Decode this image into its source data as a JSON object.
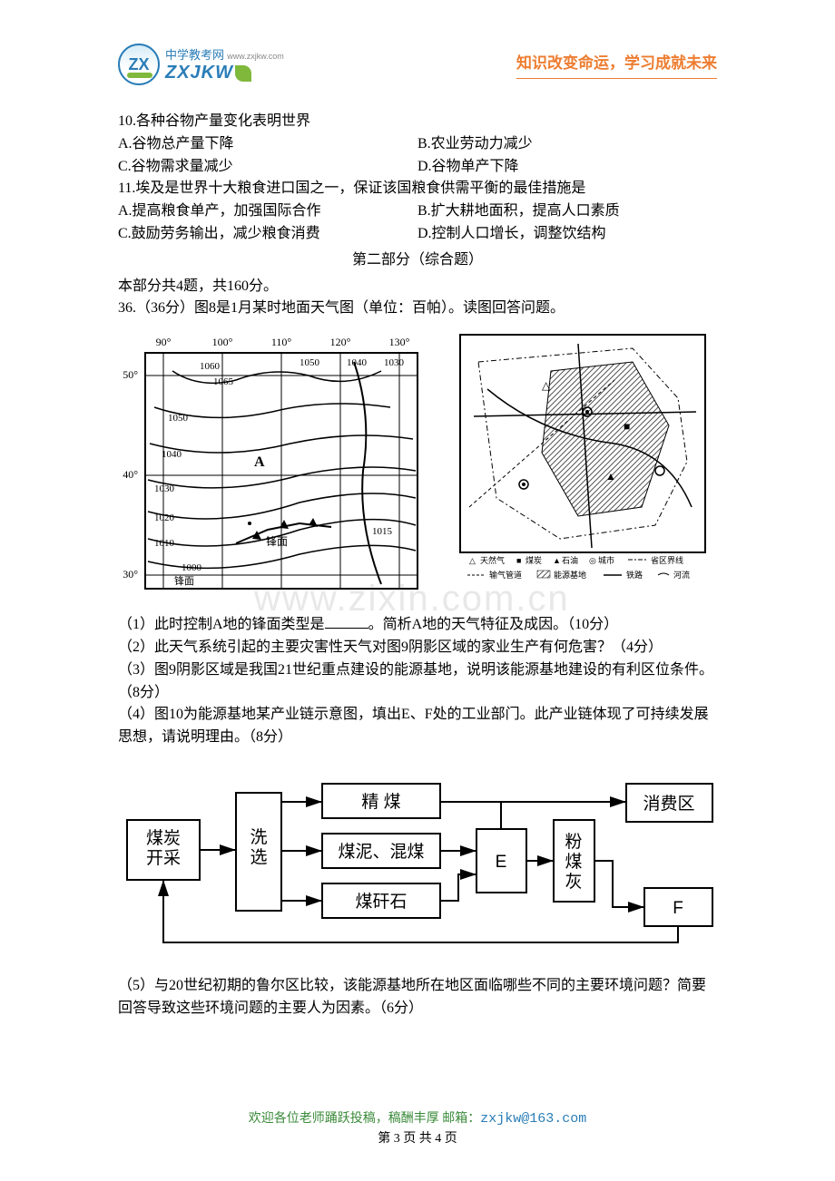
{
  "header": {
    "logo_initials": "ZX",
    "logo_cn": "中学教考网",
    "logo_url": "www.zxjkw.com",
    "logo_en": "ZXJKW",
    "slogan": "知识改变命运，学习成就未来"
  },
  "colors": {
    "brand_blue": "#2a7db8",
    "brand_green": "#7fb83b",
    "accent_orange": "#ed7d31",
    "watermark": "#e8e8e8",
    "footer_green": "#3a8a3a"
  },
  "questions": {
    "q10": {
      "stem": "10.各种谷物产量变化表明世界",
      "A": "A.谷物总产量下降",
      "B": "B.农业劳动力减少",
      "C": "C.谷物需求量减少",
      "D": "D.谷物单产下降"
    },
    "q11": {
      "stem": "11.埃及是世界十大粮食进口国之一，保证该国粮食供需平衡的最佳措施是",
      "A": "A.提高粮食单产，加强国际合作",
      "B": "B.扩大耕地面积，提高人口素质",
      "C": "C.鼓励劳务输出，减少粮食消费",
      "D": "D.控制人口增长，调整饮结构"
    },
    "section2_title": "第二部分（综合题）",
    "section2_intro": "本部分共4题，共160分。",
    "q36": {
      "stem": "36.（36分）图8是1月某时地面天气图（单位：百帕）。读图回答问题。",
      "sub1_a": "（1）此时控制A地的锋面类型是",
      "sub1_b": "。简析A地的天气特征及成因。（10分）",
      "sub2": "（2）此天气系统引起的主要灾害性天气对图9阴影区域的家业生产有何危害？（4分）",
      "sub3": "（3）图9阴影区域是我国21世纪重点建设的能源基地，说明该能源基地建设的有利区位条件。（8分）",
      "sub4": "（4）图10为能源基地某产业链示意图，填出E、F处的工业部门。此产业链体现了可持续发展思想，请说明理由。（8分）",
      "sub5": "（5）与20世纪初期的鲁尔区比较，该能源基地所在地区面临哪些不同的主要环境问题？简要回答导致这些环境问题的主要人为因素。（6分）"
    }
  },
  "fig8": {
    "type": "weather-map",
    "lon_labels": [
      "90°",
      "100°",
      "110°",
      "120°",
      "130°"
    ],
    "lon_x": [
      50,
      115,
      180,
      245,
      310
    ],
    "lat_labels": [
      "50°",
      "40°",
      "30°"
    ],
    "lat_y": [
      55,
      165,
      275
    ],
    "isobars": [
      "1060",
      "1065",
      "1050",
      "1050",
      "1040",
      "1040",
      "1030",
      "1030",
      "1020",
      "1010",
      "1000",
      "1015"
    ],
    "label_A": "A",
    "front_label": "锋面",
    "colors": {
      "line": "#000000",
      "bg": "#ffffff"
    }
  },
  "fig9": {
    "type": "regional-map",
    "legend": {
      "gas": "天然气",
      "coal": "煤炭",
      "oil": "石油",
      "city": "城市",
      "boundary": "省区界线",
      "pipeline": "输气管道",
      "base": "能源基地",
      "rail": "铁路",
      "river": "河流"
    },
    "colors": {
      "line": "#000000",
      "hatch": "#555555",
      "bg": "#ffffff"
    }
  },
  "fig10": {
    "type": "flowchart",
    "nodes": {
      "mining": "煤炭\n开采",
      "wash": "洗\n选",
      "clean_coal": "精 煤",
      "slurry": "煤泥、混煤",
      "gangue": "煤矸石",
      "E": "E",
      "ash": "粉\n煤\n灰",
      "consumer": "消费区",
      "F": "F"
    },
    "box_style": {
      "stroke": "#000000",
      "stroke_width": 2,
      "fill": "#ffffff",
      "font_size": 19,
      "font_family": "SimHei"
    }
  },
  "watermark_text": "www.zixin.com.cn",
  "footer": {
    "welcome": "欢迎各位老师踊跃投稿，稿酬丰厚 邮箱：",
    "email": "zxjkw@163.com",
    "page": "第 3 页 共 4 页"
  }
}
